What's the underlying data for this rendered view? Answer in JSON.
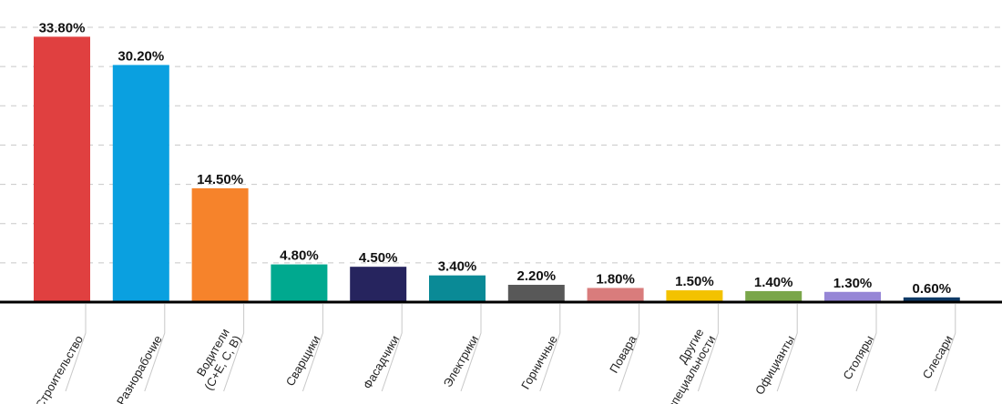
{
  "chart_data": {
    "type": "bar",
    "title": "",
    "xlabel": "",
    "ylabel": "",
    "ylim": [
      0,
      35
    ],
    "grid": true,
    "categories": [
      [
        "Строительство"
      ],
      [
        "Разнорабочие"
      ],
      [
        "Водители",
        "(C+E, C, B)"
      ],
      [
        "Сварщики"
      ],
      [
        "Фасадчики"
      ],
      [
        "Электрики"
      ],
      [
        "Горничные"
      ],
      [
        "Повара"
      ],
      [
        "Другие",
        "специальности"
      ],
      [
        "Официанты"
      ],
      [
        "Столяры"
      ],
      [
        "Слесари"
      ]
    ],
    "values": [
      33.8,
      30.2,
      14.5,
      4.8,
      4.5,
      3.4,
      2.2,
      1.8,
      1.5,
      1.4,
      1.3,
      0.6
    ],
    "value_labels": [
      "33.80%",
      "30.20%",
      "14.50%",
      "4.80%",
      "4.50%",
      "3.40%",
      "2.20%",
      "1.80%",
      "1.50%",
      "1.40%",
      "1.30%",
      "0.60%"
    ],
    "colors": [
      "#e04040",
      "#0aa0e0",
      "#f6832b",
      "#00a98f",
      "#26245e",
      "#0a8a96",
      "#585858",
      "#d97c7c",
      "#f3c200",
      "#7aa64a",
      "#9686d6",
      "#0f3a66"
    ]
  }
}
